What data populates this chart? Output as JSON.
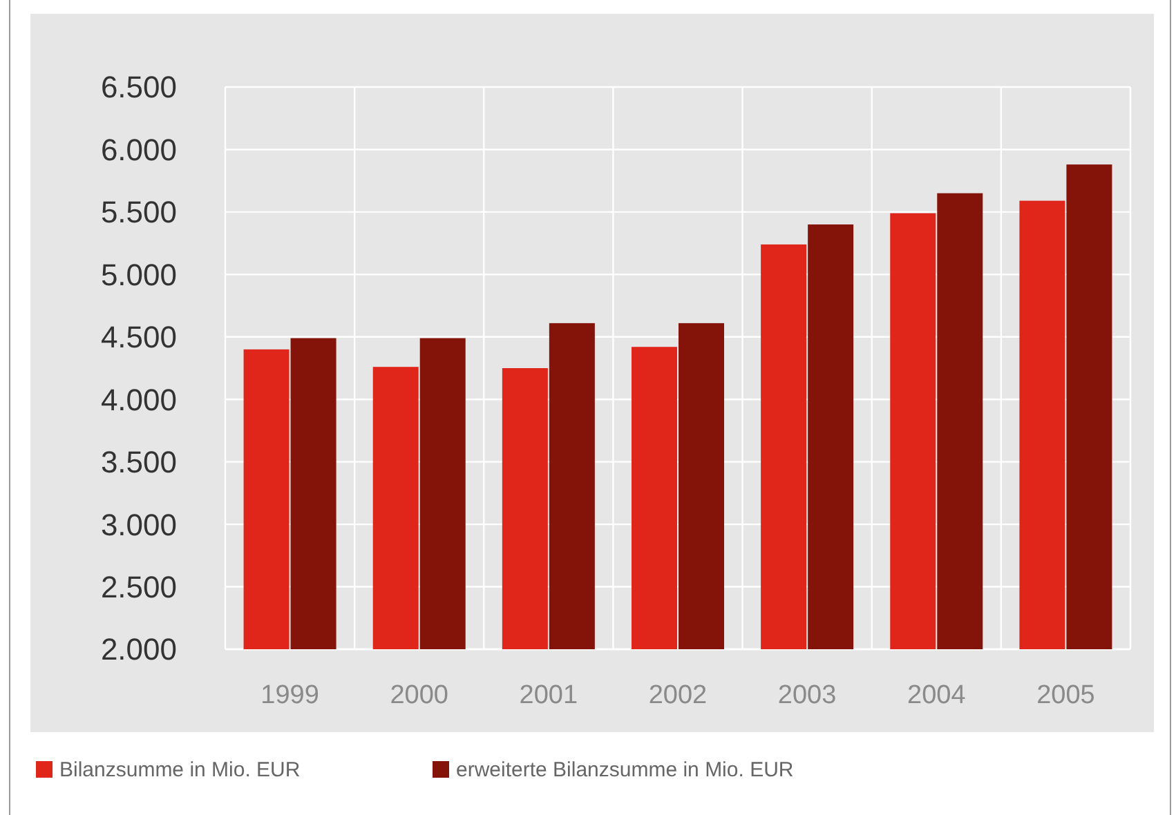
{
  "chart_data": {
    "type": "bar",
    "categories": [
      "1999",
      "2000",
      "2001",
      "2002",
      "2003",
      "2004",
      "2005"
    ],
    "series": [
      {
        "name": "Bilanzsumme in Mio. EUR",
        "color": "#e0251b",
        "values": [
          4400,
          4260,
          4250,
          4420,
          5240,
          5490,
          5590
        ]
      },
      {
        "name": "erweiterte Bilanzsumme in Mio. EUR",
        "color": "#84130a",
        "values": [
          4490,
          4490,
          4610,
          4610,
          5400,
          5650,
          5880
        ]
      }
    ],
    "ylim": [
      2000,
      6500
    ],
    "yticks": [
      {
        "value": 2000,
        "label": "2.000"
      },
      {
        "value": 2500,
        "label": "2.500"
      },
      {
        "value": 3000,
        "label": "3.000"
      },
      {
        "value": 3500,
        "label": "3.500"
      },
      {
        "value": 4000,
        "label": "4.000"
      },
      {
        "value": 4500,
        "label": "4.500"
      },
      {
        "value": 5000,
        "label": "5.000"
      },
      {
        "value": 5500,
        "label": "5.500"
      },
      {
        "value": 6000,
        "label": "6.000"
      },
      {
        "value": 6500,
        "label": "6.500"
      }
    ],
    "grid": true,
    "legend": "bottom"
  }
}
